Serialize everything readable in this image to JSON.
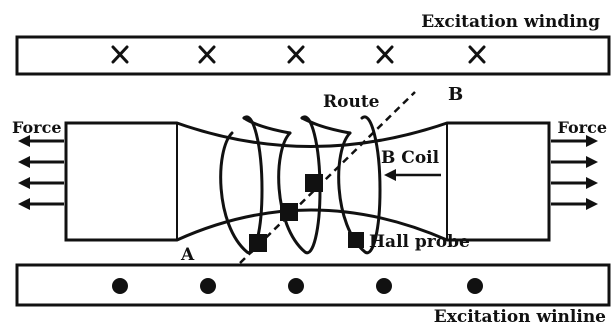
{
  "labels": {
    "excitation_top": "Excitation winding",
    "excitation_bottom": "Excitation winline",
    "force_left": "Force",
    "force_right": "Force",
    "route": "Route",
    "point_b": "B",
    "b_coil": "B Coil",
    "point_a": "A",
    "hall_probe": "Hall probe"
  },
  "markers": {
    "top_winding_symbol": "X",
    "bottom_winding_symbol": "dot",
    "top_winding_count": 5,
    "bottom_winding_count": 5
  },
  "icons": {
    "probe": "filled-square",
    "force": "arrow-left / arrow-right",
    "coil": "helix"
  }
}
